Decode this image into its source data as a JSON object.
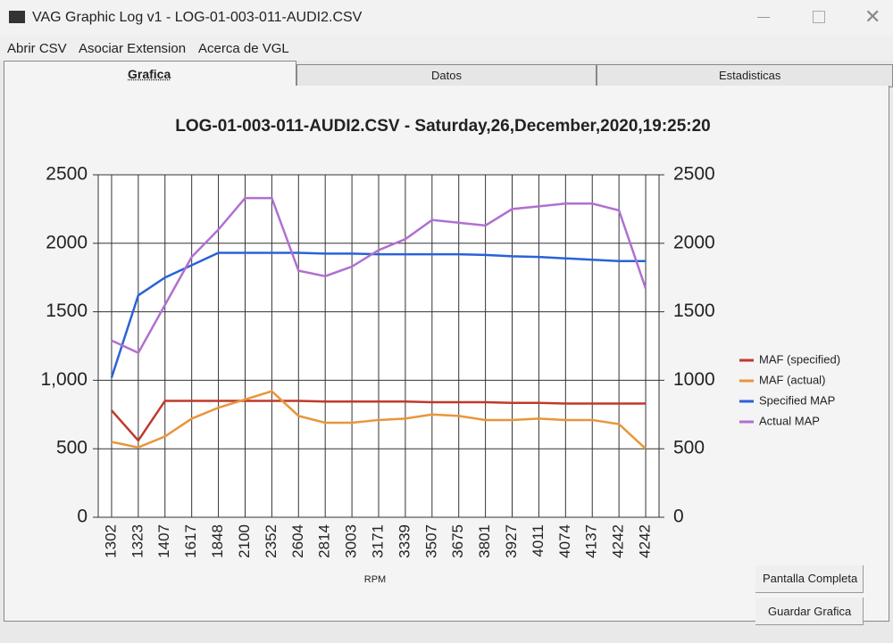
{
  "window": {
    "title": "VAG Graphic Log  v1 -  LOG-01-003-011-AUDI2.CSV"
  },
  "menu": [
    "Abrir CSV",
    "Asociar Extension",
    "Acerca de VGL"
  ],
  "tabs": [
    "Grafica",
    "Datos",
    "Estadisticas"
  ],
  "buttons": [
    "Pantalla Completa",
    "Guardar Grafica"
  ],
  "chart_data": {
    "type": "line",
    "title": "LOG-01-003-011-AUDI2.CSV - Saturday,26,December,2020,19:25:20",
    "x_label": "RPM",
    "categories": [
      "1302",
      "1323",
      "1407",
      "1617",
      "1848",
      "2100",
      "2352",
      "2604",
      "2814",
      "3003",
      "3171",
      "3339",
      "3507",
      "3675",
      "3801",
      "3927",
      "4011",
      "4074",
      "4137",
      "4242",
      "4242"
    ],
    "ylim": [
      0,
      2500
    ],
    "yticks": [
      0,
      500,
      {
        "value": 1000,
        "label": "1,000"
      },
      1500,
      2000,
      2500
    ],
    "y2lim": [
      0,
      2500
    ],
    "y2ticks": [
      0,
      500,
      1000,
      1500,
      2000,
      2500
    ],
    "grid": true,
    "legend": "right",
    "series": [
      {
        "name": "MAF (specified)",
        "color": "#c0392b",
        "values": [
          780,
          560,
          850,
          850,
          850,
          850,
          850,
          850,
          845,
          845,
          845,
          845,
          840,
          840,
          840,
          835,
          835,
          830,
          830,
          830,
          830
        ]
      },
      {
        "name": "MAF (actual)",
        "color": "#e8963a",
        "values": [
          550,
          510,
          590,
          720,
          800,
          860,
          920,
          740,
          690,
          690,
          710,
          720,
          750,
          740,
          710,
          710,
          720,
          710,
          710,
          680,
          500
        ]
      },
      {
        "name": "Specified MAP",
        "color": "#2a62d8",
        "axis": "y2",
        "values": [
          1020,
          1620,
          1750,
          1840,
          1930,
          1930,
          1930,
          1930,
          1925,
          1925,
          1920,
          1920,
          1920,
          1920,
          1915,
          1905,
          1900,
          1890,
          1880,
          1870,
          1870
        ]
      },
      {
        "name": "Actual MAP",
        "color": "#b070d0",
        "axis": "y2",
        "values": [
          1290,
          1200,
          1550,
          1900,
          2100,
          2330,
          2330,
          1800,
          1760,
          1830,
          1950,
          2030,
          2170,
          2150,
          2130,
          2250,
          2270,
          2290,
          2290,
          2240,
          1670
        ]
      }
    ]
  }
}
